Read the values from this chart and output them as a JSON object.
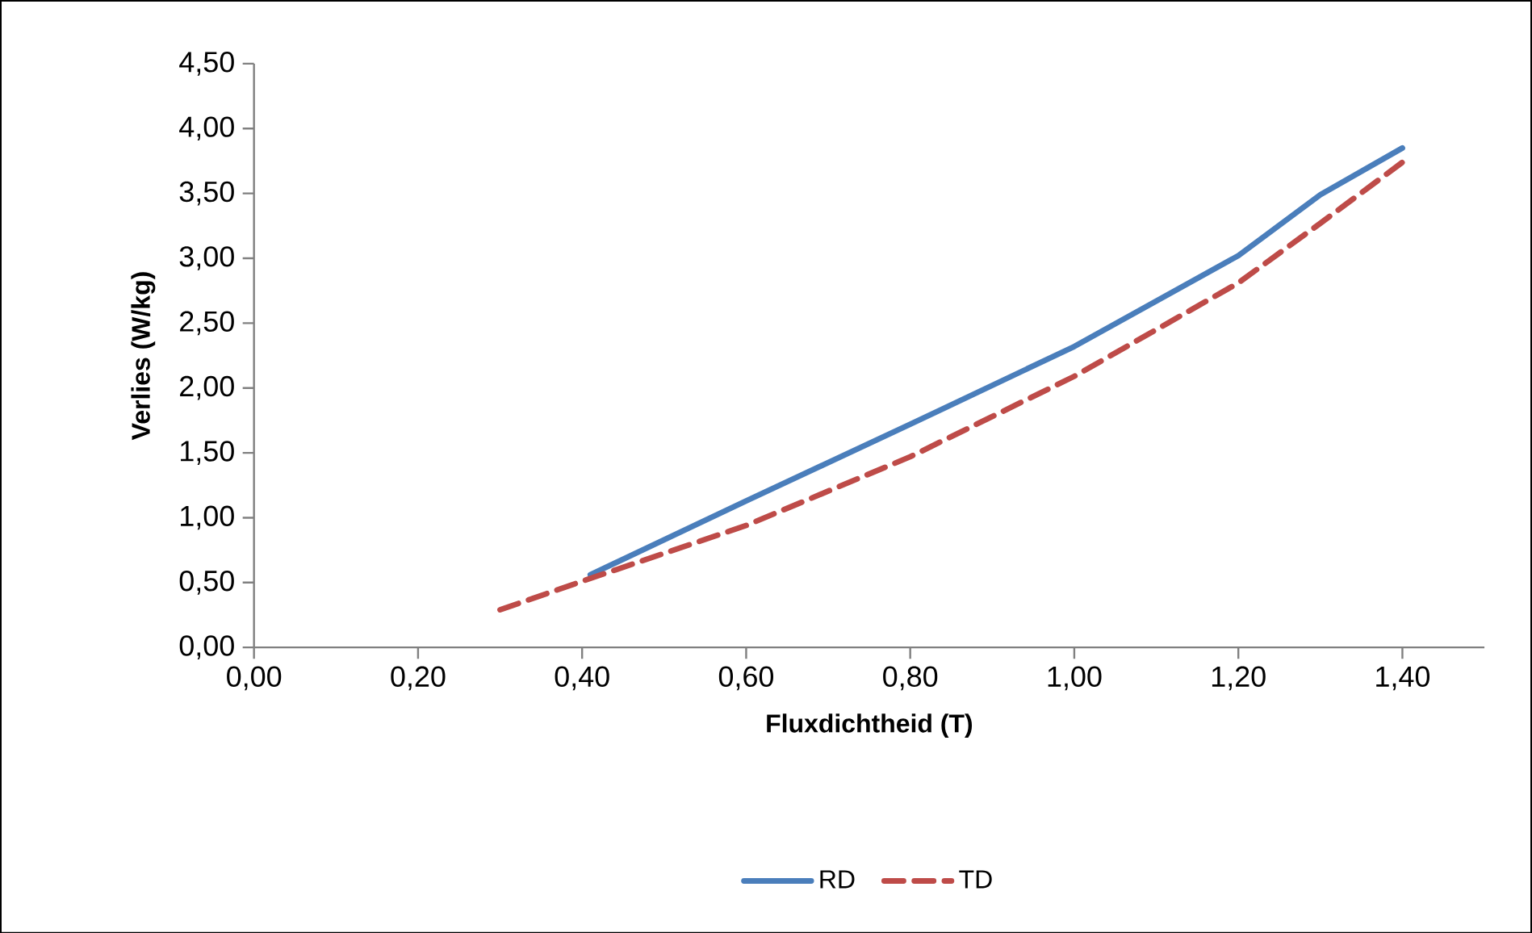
{
  "chart_data": {
    "type": "line",
    "xlabel": "Fluxdichtheid (T)",
    "ylabel": "Verlies (W/kg)",
    "xlim": [
      0,
      1.5
    ],
    "ylim": [
      0,
      4.5
    ],
    "xticks": [
      {
        "value": 0,
        "label": "0,00"
      },
      {
        "value": 0.2,
        "label": "0,20"
      },
      {
        "value": 0.4,
        "label": "0,40"
      },
      {
        "value": 0.6,
        "label": "0,60"
      },
      {
        "value": 0.8,
        "label": "0,80"
      },
      {
        "value": 1.0,
        "label": "1,00"
      },
      {
        "value": 1.2,
        "label": "1,20"
      },
      {
        "value": 1.4,
        "label": "1,40"
      }
    ],
    "yticks": [
      {
        "value": 0,
        "label": "0,00"
      },
      {
        "value": 0.5,
        "label": "0,50"
      },
      {
        "value": 1.0,
        "label": "1,00"
      },
      {
        "value": 1.5,
        "label": "1,50"
      },
      {
        "value": 2.0,
        "label": "2,00"
      },
      {
        "value": 2.5,
        "label": "2,50"
      },
      {
        "value": 3.0,
        "label": "3,00"
      },
      {
        "value": 3.5,
        "label": "3,50"
      },
      {
        "value": 4.0,
        "label": "4,00"
      },
      {
        "value": 4.5,
        "label": "4,50"
      }
    ],
    "grid": false,
    "legend": "bottom",
    "marker": "none",
    "series": [
      {
        "name": "RD",
        "color": "#4a7ebb",
        "line_style": "solid",
        "x": [
          0.41,
          0.6,
          0.8,
          1.0,
          1.2,
          1.3,
          1.4
        ],
        "values": [
          0.56,
          1.13,
          1.72,
          2.32,
          3.02,
          3.49,
          3.85
        ]
      },
      {
        "name": "TD",
        "color": "#be4b48",
        "line_style": "dashed",
        "x": [
          0.3,
          0.4,
          0.6,
          0.8,
          1.0,
          1.2,
          1.3,
          1.4
        ],
        "values": [
          0.29,
          0.51,
          0.94,
          1.47,
          2.09,
          2.81,
          3.27,
          3.74
        ]
      }
    ]
  }
}
